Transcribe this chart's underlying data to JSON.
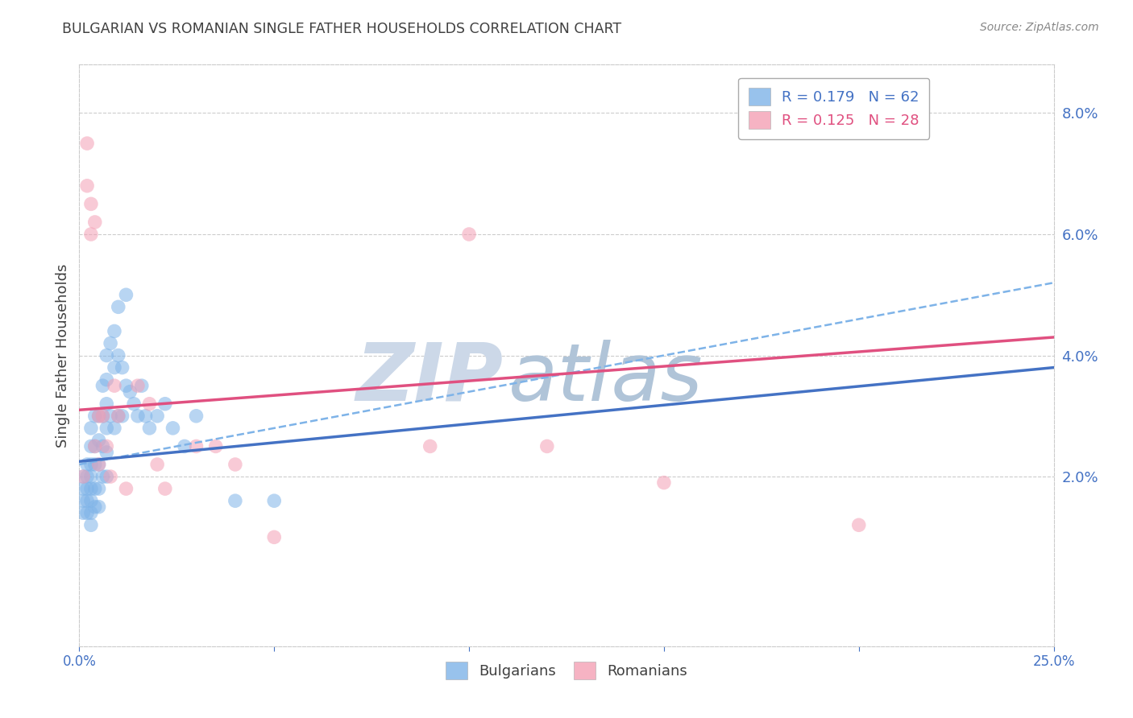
{
  "title": "BULGARIAN VS ROMANIAN SINGLE FATHER HOUSEHOLDS CORRELATION CHART",
  "source": "Source: ZipAtlas.com",
  "ylabel": "Single Father Households",
  "right_yticks": [
    "8.0%",
    "6.0%",
    "4.0%",
    "2.0%"
  ],
  "right_ytick_vals": [
    0.08,
    0.06,
    0.04,
    0.02
  ],
  "bulgarians_color": "#7eb3e8",
  "romanians_color": "#f4a0b5",
  "blue_line_color": "#4472C4",
  "pink_line_color": "#E05080",
  "dashed_line_color": "#7eb3e8",
  "background_color": "#ffffff",
  "grid_color": "#cccccc",
  "axis_color": "#4472C4",
  "title_color": "#404040",
  "source_color": "#888888",
  "watermark_zip_color": "#ccd8e8",
  "watermark_atlas_color": "#b0c4d8",
  "xlim": [
    0.0,
    0.25
  ],
  "ylim": [
    -0.008,
    0.088
  ],
  "bulgarians_x": [
    0.001,
    0.001,
    0.001,
    0.001,
    0.002,
    0.002,
    0.002,
    0.002,
    0.002,
    0.003,
    0.003,
    0.003,
    0.003,
    0.003,
    0.003,
    0.003,
    0.003,
    0.004,
    0.004,
    0.004,
    0.004,
    0.004,
    0.005,
    0.005,
    0.005,
    0.005,
    0.005,
    0.006,
    0.006,
    0.006,
    0.006,
    0.007,
    0.007,
    0.007,
    0.007,
    0.007,
    0.007,
    0.008,
    0.008,
    0.009,
    0.009,
    0.009,
    0.01,
    0.01,
    0.01,
    0.011,
    0.011,
    0.012,
    0.012,
    0.013,
    0.014,
    0.015,
    0.016,
    0.017,
    0.018,
    0.02,
    0.022,
    0.024,
    0.027,
    0.03,
    0.04,
    0.05
  ],
  "bulgarians_y": [
    0.02,
    0.018,
    0.016,
    0.014,
    0.022,
    0.02,
    0.018,
    0.016,
    0.014,
    0.028,
    0.025,
    0.022,
    0.02,
    0.018,
    0.016,
    0.014,
    0.012,
    0.03,
    0.025,
    0.022,
    0.018,
    0.015,
    0.03,
    0.026,
    0.022,
    0.018,
    0.015,
    0.035,
    0.03,
    0.025,
    0.02,
    0.04,
    0.036,
    0.032,
    0.028,
    0.024,
    0.02,
    0.042,
    0.03,
    0.044,
    0.038,
    0.028,
    0.048,
    0.04,
    0.03,
    0.038,
    0.03,
    0.05,
    0.035,
    0.034,
    0.032,
    0.03,
    0.035,
    0.03,
    0.028,
    0.03,
    0.032,
    0.028,
    0.025,
    0.03,
    0.016,
    0.016
  ],
  "romanians_x": [
    0.001,
    0.002,
    0.002,
    0.003,
    0.003,
    0.004,
    0.004,
    0.005,
    0.005,
    0.006,
    0.007,
    0.008,
    0.009,
    0.01,
    0.012,
    0.015,
    0.018,
    0.02,
    0.022,
    0.03,
    0.035,
    0.04,
    0.05,
    0.09,
    0.1,
    0.12,
    0.15,
    0.2
  ],
  "romanians_y": [
    0.02,
    0.075,
    0.068,
    0.06,
    0.065,
    0.062,
    0.025,
    0.03,
    0.022,
    0.03,
    0.025,
    0.02,
    0.035,
    0.03,
    0.018,
    0.035,
    0.032,
    0.022,
    0.018,
    0.025,
    0.025,
    0.022,
    0.01,
    0.025,
    0.06,
    0.025,
    0.019,
    0.012
  ],
  "blue_line": {
    "x0": 0.0,
    "y0": 0.0225,
    "x1": 0.25,
    "y1": 0.038
  },
  "pink_line": {
    "x0": 0.0,
    "y0": 0.031,
    "x1": 0.25,
    "y1": 0.043
  },
  "dashed_line": {
    "x0": 0.0,
    "y0": 0.022,
    "x1": 0.25,
    "y1": 0.052
  }
}
